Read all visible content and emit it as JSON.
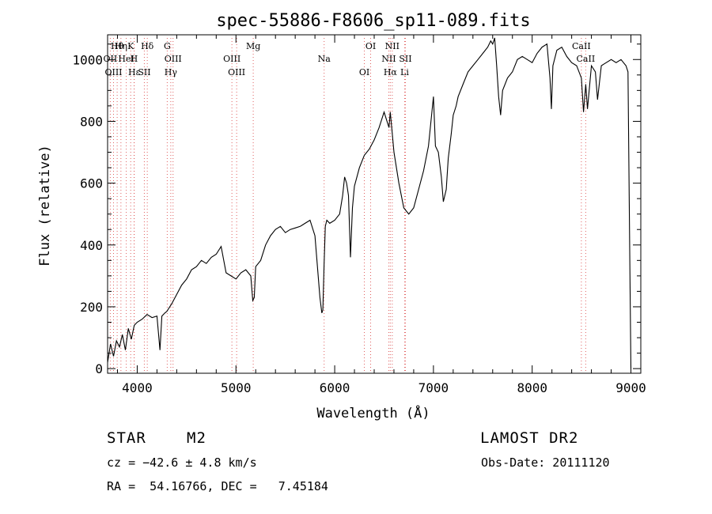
{
  "chart_data": {
    "type": "line",
    "title": "spec-55886-F8606_sp11-089.fits",
    "xlabel": "Wavelength (Å)",
    "ylabel": "Flux (relative)",
    "xlim": [
      3700,
      9100
    ],
    "ylim": [
      -15,
      1080
    ],
    "x_ticks": [
      4000,
      5000,
      6000,
      7000,
      8000,
      9000
    ],
    "y_ticks": [
      0,
      200,
      400,
      600,
      800,
      1000
    ],
    "grid": false,
    "series": [
      {
        "x": [
          3700,
          3730,
          3760,
          3790,
          3820,
          3850,
          3880,
          3910,
          3940,
          3970,
          4000,
          4050,
          4100,
          4150,
          4200,
          4230,
          4250,
          4280,
          4300,
          4350,
          4400,
          4450,
          4500,
          4550,
          4600,
          4650,
          4700,
          4750,
          4800,
          4850,
          4900,
          4950,
          5000,
          5050,
          5100,
          5150,
          5170,
          5185,
          5200,
          5250,
          5300,
          5350,
          5400,
          5450,
          5500,
          5550,
          5600,
          5650,
          5700,
          5750,
          5800,
          5850,
          5870,
          5880,
          5893,
          5905,
          5920,
          5950,
          6000,
          6050,
          6080,
          6100,
          6120,
          6140,
          6160,
          6180,
          6200,
          6250,
          6300,
          6350,
          6400,
          6450,
          6500,
          6530,
          6550,
          6563,
          6580,
          6600,
          6650,
          6700,
          6750,
          6800,
          6850,
          6900,
          6950,
          7000,
          7020,
          7050,
          7080,
          7100,
          7130,
          7150,
          7180,
          7200,
          7230,
          7250,
          7300,
          7350,
          7400,
          7450,
          7500,
          7550,
          7580,
          7600,
          7620,
          7640,
          7660,
          7680,
          7700,
          7750,
          7800,
          7850,
          7900,
          7950,
          8000,
          8050,
          8100,
          8150,
          8180,
          8195,
          8210,
          8250,
          8300,
          8350,
          8400,
          8450,
          8498,
          8520,
          8542,
          8560,
          8600,
          8640,
          8662,
          8700,
          8750,
          8800,
          8850,
          8900,
          8950,
          8970,
          8990,
          9000
        ],
        "values": [
          20,
          80,
          40,
          90,
          70,
          110,
          60,
          130,
          95,
          140,
          150,
          160,
          175,
          165,
          170,
          60,
          170,
          180,
          185,
          210,
          240,
          270,
          290,
          320,
          330,
          350,
          340,
          360,
          370,
          395,
          310,
          300,
          290,
          310,
          320,
          300,
          220,
          230,
          330,
          350,
          400,
          430,
          450,
          460,
          440,
          450,
          455,
          460,
          470,
          480,
          430,
          230,
          180,
          190,
          340,
          460,
          480,
          470,
          480,
          500,
          560,
          620,
          600,
          560,
          360,
          520,
          590,
          650,
          690,
          710,
          740,
          780,
          830,
          800,
          780,
          830,
          770,
          700,
          600,
          520,
          500,
          520,
          580,
          640,
          720,
          880,
          720,
          700,
          620,
          540,
          580,
          680,
          760,
          820,
          850,
          880,
          920,
          960,
          980,
          1000,
          1020,
          1040,
          1060,
          1050,
          1070,
          980,
          880,
          820,
          900,
          940,
          960,
          1000,
          1010,
          1000,
          990,
          1020,
          1040,
          1050,
          940,
          840,
          980,
          1030,
          1040,
          1010,
          990,
          980,
          940,
          830,
          920,
          840,
          980,
          960,
          870,
          980,
          990,
          1000,
          990,
          1000,
          980,
          960,
          300,
          0
        ]
      }
    ],
    "lines": [
      {
        "label": "Hθ",
        "wave": 3797
      },
      {
        "label": "OII",
        "wave": 3727
      },
      {
        "label": "OIII",
        "wave": 3760
      },
      {
        "label": "K",
        "wave": 3934
      },
      {
        "label": "H",
        "wave": 3968
      },
      {
        "label": "Hε",
        "wave": 3970
      },
      {
        "label": "Hη",
        "wave": 3835
      },
      {
        "label": "HeI",
        "wave": 3889
      },
      {
        "label": "SII",
        "wave": 4072
      },
      {
        "label": "Hδ",
        "wave": 4102
      },
      {
        "label": "OIII",
        "wave": 4363
      },
      {
        "label": "Hγ",
        "wave": 4340
      },
      {
        "label": "G",
        "wave": 4304
      },
      {
        "label": "OIII",
        "wave": 4959
      },
      {
        "label": "OIII",
        "wave": 5007
      },
      {
        "label": "Mg",
        "wave": 5175
      },
      {
        "label": "Na",
        "wave": 5893
      },
      {
        "label": "OI",
        "wave": 6300
      },
      {
        "label": "OI",
        "wave": 6364
      },
      {
        "label": "NII",
        "wave": 6548
      },
      {
        "label": "Hα",
        "wave": 6563
      },
      {
        "label": "NII",
        "wave": 6583
      },
      {
        "label": "SII",
        "wave": 6716
      },
      {
        "label": "Li",
        "wave": 6708
      },
      {
        "label": "CaII",
        "wave": 8498
      },
      {
        "label": "CaII",
        "wave": 8542
      }
    ]
  },
  "info": {
    "object_type": "STAR",
    "subclass": "M2",
    "survey": "LAMOST DR2",
    "cz": "cz = −42.6 ± 4.8 km/s",
    "obs_date": "Obs-Date: 20111120",
    "coords": "RA =  54.16766, DEC =   7.45184"
  }
}
